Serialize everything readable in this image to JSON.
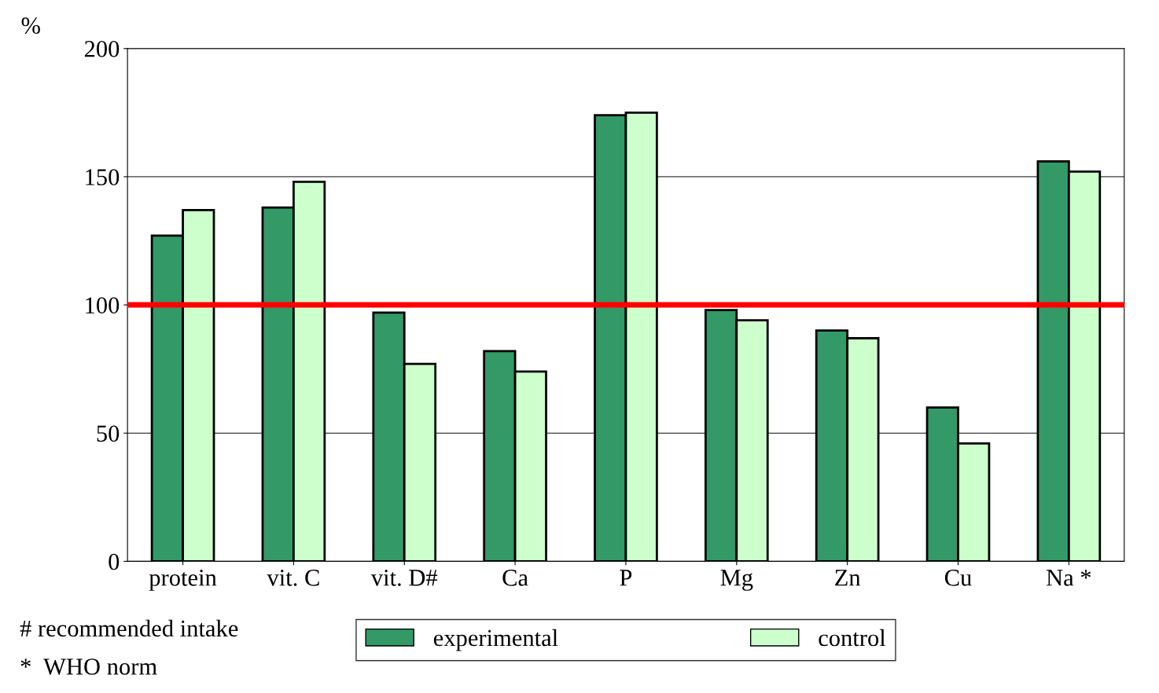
{
  "chart_data": {
    "type": "bar",
    "ylabel": "%",
    "categories": [
      "protein",
      "vit. C",
      "vit. D#",
      "Ca",
      "P",
      "Mg",
      "Zn",
      "Cu",
      "Na *"
    ],
    "series": [
      {
        "name": "experimental",
        "color": "#339966",
        "values": [
          127,
          138,
          97,
          82,
          174,
          98,
          90,
          60,
          156
        ]
      },
      {
        "name": "control",
        "color": "#ccffcc",
        "values": [
          137,
          148,
          77,
          74,
          175,
          94,
          87,
          46,
          152
        ]
      }
    ],
    "ylim": [
      0,
      200
    ],
    "yticks": [
      0,
      50,
      100,
      150,
      200
    ],
    "grid": "y",
    "legend": "bottom",
    "ref_lines": [
      {
        "axis": "y",
        "value": 100,
        "color": "#ff0000"
      }
    ],
    "annotations": [
      "# recommended intake",
      "*  WHO norm"
    ]
  }
}
